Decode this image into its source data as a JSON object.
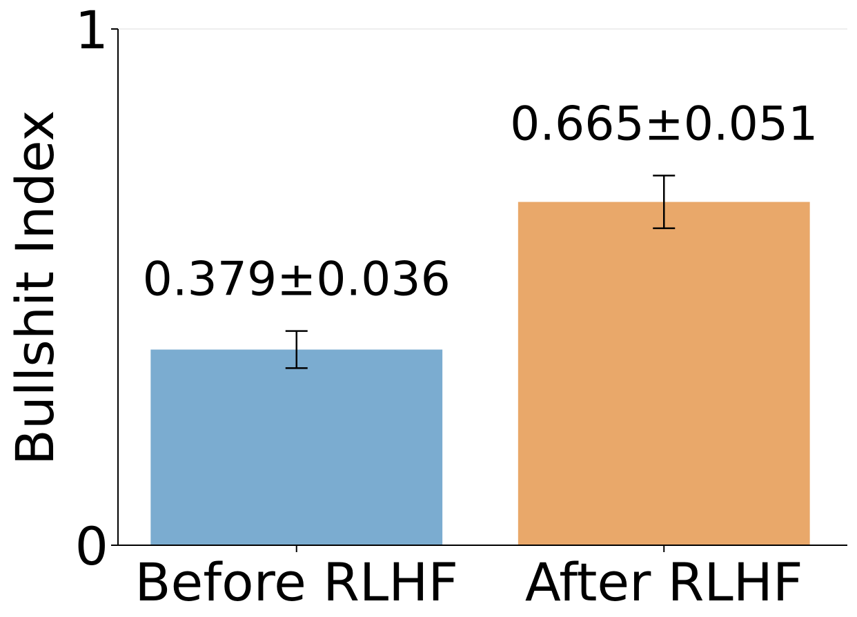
{
  "chart_data": {
    "type": "bar",
    "ylabel": "Bullshit Index",
    "ylim": [
      0,
      1
    ],
    "yticks": [
      {
        "value": 0,
        "label": "0"
      },
      {
        "value": 1,
        "label": "1"
      }
    ],
    "grid": "horizontal line at y = 1 only",
    "categories": [
      "Before RLHF",
      "After RLHF"
    ],
    "values": [
      0.379,
      0.665
    ],
    "errors": [
      0.036,
      0.051
    ],
    "value_labels": [
      "0.379±0.036",
      "0.665±0.051"
    ],
    "colors": [
      "#7bacd0",
      "#e9a86a"
    ]
  }
}
